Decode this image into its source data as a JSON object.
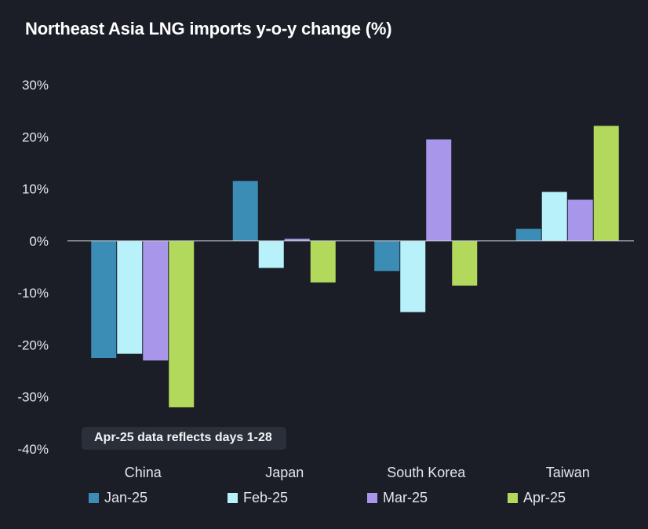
{
  "chart_data": {
    "type": "bar",
    "title": "Northeast Asia LNG imports y-o-y change (%)",
    "categories": [
      "China",
      "Japan",
      "South Korea",
      "Taiwan"
    ],
    "series": [
      {
        "name": "Jan-25",
        "color": "#3b8db5",
        "values": [
          -22.5,
          11.5,
          -5.8,
          2.3
        ]
      },
      {
        "name": "Feb-25",
        "color": "#b9f1fb",
        "values": [
          -21.7,
          -5.2,
          -13.7,
          9.4
        ]
      },
      {
        "name": "Mar-25",
        "color": "#a896eb",
        "values": [
          -23.0,
          0.4,
          19.5,
          7.9
        ]
      },
      {
        "name": "Apr-25",
        "color": "#b2d85c",
        "values": [
          -32.0,
          -8.0,
          -8.6,
          22.1
        ]
      }
    ],
    "ylim": [
      -40,
      30
    ],
    "yticks": [
      30,
      20,
      10,
      0,
      -10,
      -20,
      -30,
      -40
    ],
    "ytick_labels": [
      "30%",
      "20%",
      "10%",
      "0%",
      "-10%",
      "-20%",
      "-30%",
      "-40%"
    ],
    "xlabel": "",
    "ylabel": "",
    "grid": false,
    "legend_position": "bottom",
    "annotation": "Apr-25 data reflects days 1-28"
  }
}
